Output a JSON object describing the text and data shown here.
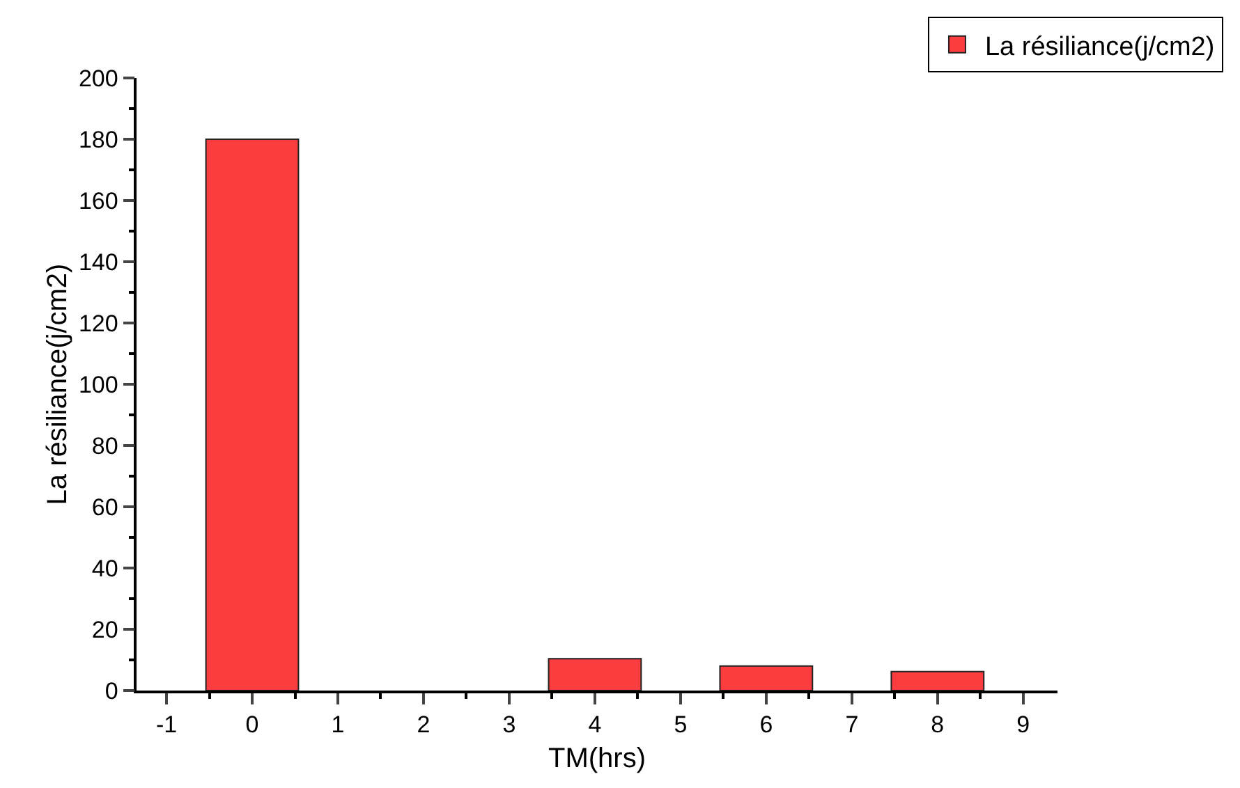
{
  "chart_data": {
    "type": "bar",
    "xlabel": "TM(hrs)",
    "ylabel": "La résiliance(j/cm2)",
    "x": [
      0,
      4,
      6,
      8
    ],
    "series": [
      {
        "name": "La résiliance(j/cm2)",
        "color": "#fb3d3f",
        "values": [
          180,
          10.4,
          8.0,
          6.2
        ]
      }
    ],
    "xlim": [
      -1.35,
      9.4
    ],
    "xticks": [
      -1,
      0,
      1,
      2,
      3,
      4,
      5,
      6,
      7,
      8,
      9
    ],
    "ylim": [
      0,
      200
    ],
    "yticks": [
      0,
      20,
      40,
      60,
      80,
      100,
      120,
      140,
      160,
      180,
      200
    ],
    "legend": "top right",
    "grid": false
  }
}
